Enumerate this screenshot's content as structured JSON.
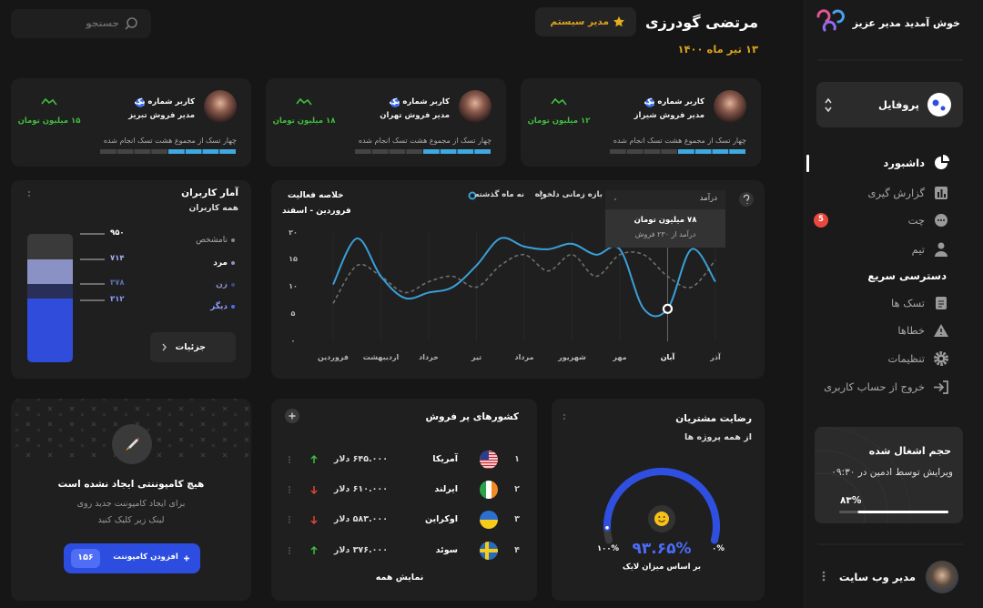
{
  "header": {
    "name": "مرتضی گودرزی",
    "date": "۱۳ تیر ماه ۱۴۰۰",
    "role": "مدیر سیستم",
    "search_placeholder": "جستجو"
  },
  "sidebar": {
    "welcome": "خوش آمدید مدیر عزیز",
    "profile": "پروفایل",
    "menu": [
      {
        "label": "داشبورد"
      },
      {
        "label": "گزارش گیری"
      },
      {
        "label": "چت",
        "badge": "5"
      },
      {
        "label": "تیم"
      }
    ],
    "quick_access_title": "دسترسی سریع",
    "quick_access": [
      "تسک ها",
      "خطاها",
      "تنظیمات",
      "خروج از حساب کاربری"
    ],
    "storage": {
      "title": "حجم اشغال شده",
      "subtitle": "ویرایش توسط ادمین در ۰۹:۳۰",
      "progress": {
        "value": 83,
        "label": "۸۳%"
      }
    },
    "user": "مدیر وب سایت"
  },
  "sales_cards": [
    {
      "user": "کاربر شماره یک",
      "role": "مدیر فروش شیراز",
      "amount": "۱۲ میلیون تومان",
      "tasks": "چهار تسک از مجموع هشت تسک انجام شده"
    },
    {
      "user": "کاربر شماره یک",
      "role": "مدیر فروش تهران",
      "amount": "۱۸ میلیون تومان",
      "tasks": "چهار تسک از مجموع هشت تسک انجام شده"
    },
    {
      "user": "کاربر شماره یک",
      "role": "مدیر فروش تبریز",
      "amount": "۱۵ میلیون تومان",
      "tasks": "چهار تسک از مجموع هشت تسک انجام شده"
    }
  ],
  "user_stats": {
    "title": "آمار کاربران",
    "subtitle": "همه کاربران",
    "groups": [
      {
        "name": "نامشخص",
        "count": "۹۵۰"
      },
      {
        "name": "مرد",
        "count": "۷۱۴"
      },
      {
        "name": "زن",
        "count": "۳۷۸"
      },
      {
        "name": "دیگر",
        "count": "۳۱۲"
      }
    ],
    "details_button": "جزئیات"
  },
  "activity_chart": {
    "type": "line",
    "title": "خلاصه فعالیت",
    "subtitle": "فروردین - اسفند",
    "categories": [
      "فروردین",
      null,
      "اردیبهشت",
      null,
      "خرداد",
      null,
      "تیر",
      null,
      "مرداد",
      null,
      "شهریور",
      null,
      "مهر",
      null,
      "آبان",
      null,
      "آذر"
    ],
    "series": [
      {
        "name": "نه ماه گذشته",
        "color": "#3a9fd8",
        "style": "solid",
        "values": [
          10.5,
          19,
          12,
          8,
          9,
          10,
          14,
          19,
          17.5,
          17,
          18,
          16,
          17,
          6,
          6,
          17,
          11
        ]
      },
      {
        "name": "بازه زمانی دلخواه",
        "color": "#6f6f6f",
        "style": "dashed",
        "values": [
          7,
          14,
          12,
          9,
          11,
          12,
          10,
          14,
          16,
          13,
          16,
          12,
          16,
          16,
          12,
          10,
          15
        ]
      }
    ],
    "ylim": [
      0,
      20
    ],
    "yticks": [
      {
        "value": 0,
        "label": "۰"
      },
      {
        "value": 5,
        "label": "۵"
      },
      {
        "value": 10,
        "label": "۱۰"
      },
      {
        "value": 15,
        "label": "۱۵"
      },
      {
        "value": 20,
        "label": "۲۰"
      }
    ],
    "highlight_index": 14,
    "tooltip": {
      "title": "درآمد",
      "value": "۷۸ میلیون تومان",
      "detail": "درآمد از ۲۳۰ فروش"
    }
  },
  "top_countries": {
    "title": "کشورهای پر فروش",
    "rows": [
      {
        "rank": "۱",
        "country": "آمریکا",
        "amount": "۶۴۵.۰۰۰ دلار",
        "trend": "up"
      },
      {
        "rank": "۲",
        "country": "ایرلند",
        "amount": "۶۱۰.۰۰۰ دلار",
        "trend": "down"
      },
      {
        "rank": "۳",
        "country": "اوکراین",
        "amount": "۵۸۳.۰۰۰ دلار",
        "trend": "down"
      },
      {
        "rank": "۴",
        "country": "سوئد",
        "amount": "۳۷۶.۰۰۰ دلار",
        "trend": "up"
      }
    ],
    "show_all": "نمایش همه"
  },
  "satisfaction": {
    "title": "رضایت مشتریان",
    "subtitle": "از همه پروژه ها",
    "gauge": {
      "value": 93.65,
      "label": "۹۳.۶۵%"
    },
    "min_label": "۰%",
    "max_label": "۱۰۰%",
    "note": "بر اساس میزان لایک"
  },
  "campaign": {
    "title": "هیچ کامپوننتی ایجاد نشده است",
    "description_lines": [
      "برای ایجاد کامپوننت جدید روی",
      "لینک زیر کلیک کنید"
    ],
    "button": "افزودن کامپوننت",
    "count": "۱۵۶"
  }
}
